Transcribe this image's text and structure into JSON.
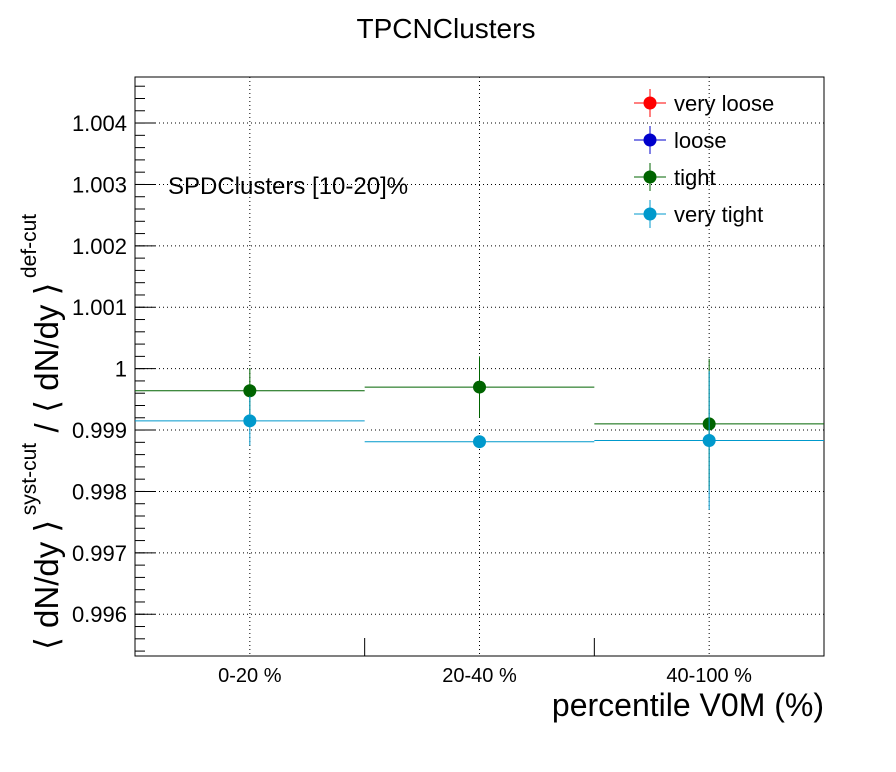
{
  "chart_data": {
    "type": "scatter",
    "title": "TPCNClusters",
    "xlabel": "percentile V0M (%)",
    "ylabel": {
      "main": "⟨ dN/dy ⟩",
      "sup_num": "syst-cut",
      "divider": "/",
      "main2": "⟨ dN/dy ⟩",
      "sup_den": "def-cut"
    },
    "annotation": "SPDClusters [10-20]%",
    "categories": [
      "0-20 %",
      "20-40 %",
      "40-100 %"
    ],
    "ylim": [
      0.99532,
      1.00475
    ],
    "yticks_major": [
      0.996,
      0.997,
      0.998,
      0.999,
      1,
      1.001,
      1.002,
      1.003,
      1.004
    ],
    "ytick_labels": [
      "0.996",
      "0.997",
      "0.998",
      "0.999",
      "1",
      "1.001",
      "1.002",
      "1.003",
      "1.004"
    ],
    "grid": true,
    "legend_position": "top-right",
    "series": [
      {
        "name": "very loose",
        "color": "#ff0000",
        "values": [
          null,
          null,
          null
        ],
        "errors": [
          null,
          null,
          null
        ]
      },
      {
        "name": "loose",
        "color": "#0000cc",
        "values": [
          null,
          null,
          null
        ],
        "errors": [
          null,
          null,
          null
        ]
      },
      {
        "name": "tight",
        "color": "#006400",
        "values": [
          0.99964,
          0.9997,
          0.9991
        ],
        "errors": [
          0.00037,
          0.0005,
          0.00106
        ]
      },
      {
        "name": "very tight",
        "color": "#0099cc",
        "values": [
          0.99915,
          0.99881,
          0.99883
        ],
        "errors": [
          0.0004,
          0.0,
          0.00113
        ]
      }
    ]
  }
}
